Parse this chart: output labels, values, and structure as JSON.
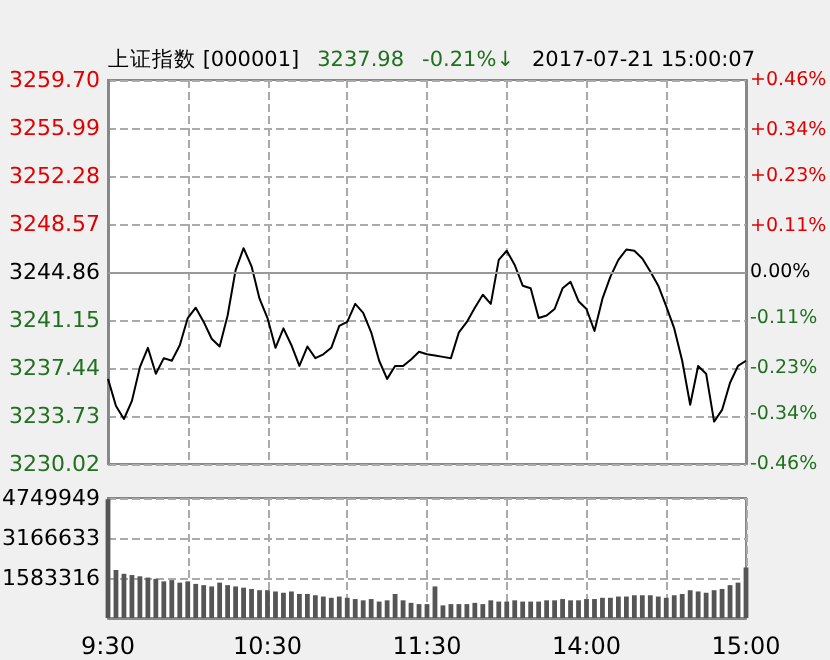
{
  "chart_data": [
    {
      "type": "line",
      "title": "上证指数 [000001]",
      "annotations": [
        "3237.98",
        "-0.21%↓",
        "2017-07-21 15:00:07"
      ],
      "categories": [
        null,
        null,
        null,
        null,
        null,
        null,
        null,
        null,
        null,
        null,
        null,
        null,
        null,
        null,
        null,
        null,
        null,
        null,
        null,
        null,
        null,
        null,
        null,
        null,
        null,
        null,
        null,
        null,
        null,
        null,
        null,
        null,
        null,
        null,
        null,
        null,
        null,
        null,
        null,
        null,
        null,
        null,
        null,
        null,
        null,
        null,
        null,
        null,
        null,
        null,
        null,
        null,
        null,
        null,
        null,
        null,
        null,
        null,
        null,
        null,
        null,
        null,
        null,
        null,
        null,
        null,
        null,
        null,
        null,
        null,
        null,
        null,
        null,
        null,
        null,
        null,
        null,
        null,
        null,
        null,
        null
      ],
      "series": [
        {
          "color": "#000000",
          "values": [
            3236.6,
            3234.5,
            3233.5,
            3234.9,
            3237.5,
            3239.0,
            3237.0,
            3238.2,
            3238.0,
            3239.2,
            3241.3,
            3242.1,
            3241.0,
            3239.7,
            3239.1,
            3241.5,
            3245.0,
            3246.7,
            3245.3,
            3242.8,
            3241.3,
            3239.0,
            3240.5,
            3239.2,
            3237.6,
            3239.1,
            3238.2,
            3238.5,
            3239.0,
            3240.7,
            3241.0,
            3242.4,
            3241.7,
            3240.2,
            3238.0,
            3236.6,
            3237.6,
            3237.6,
            3238.1,
            3238.7,
            3238.5,
            3238.4,
            3238.3,
            3238.2,
            3240.2,
            3241.0,
            3242.1,
            3243.1,
            3242.4,
            3245.8,
            3246.5,
            3245.4,
            3243.8,
            3243.6,
            3241.3,
            3241.5,
            3242.0,
            3243.6,
            3244.1,
            3242.6,
            3242.0,
            3240.3,
            3242.8,
            3244.5,
            3245.8,
            3246.6,
            3246.5,
            3245.9,
            3244.9,
            3243.8,
            3242.2,
            3240.5,
            3238.0,
            3234.6,
            3237.6,
            3237.0,
            3233.3,
            3234.2,
            3236.3,
            3237.6,
            3238.0
          ]
        }
      ],
      "ylim": [
        3230.02,
        3259.7
      ],
      "yticks": [
        {
          "value": 3230.02,
          "label": "3230.02"
        },
        {
          "value": 3233.73,
          "label": "3233.73"
        },
        {
          "value": 3237.44,
          "label": "3237.44"
        },
        {
          "value": 3241.15,
          "label": "3241.15"
        },
        {
          "value": 3244.86,
          "label": "3244.86"
        },
        {
          "value": 3248.57,
          "label": "3248.57"
        },
        {
          "value": 3252.28,
          "label": "3252.28"
        },
        {
          "value": 3255.99,
          "label": "3255.99"
        },
        {
          "value": 3259.7,
          "label": "3259.70"
        }
      ],
      "y2lim": [
        -0.46,
        0.46
      ],
      "y2ticks": [
        {
          "value": -0.46,
          "label": "-0.46%"
        },
        {
          "value": -0.34,
          "label": "-0.34%"
        },
        {
          "value": -0.23,
          "label": "-0.23%"
        },
        {
          "value": -0.11,
          "label": "-0.11%"
        },
        {
          "value": 0,
          "label": "0.00%"
        },
        {
          "value": 0.11,
          "label": "+0.11%"
        },
        {
          "value": 0.23,
          "label": "+0.23%"
        },
        {
          "value": 0.34,
          "label": "+0.34%"
        },
        {
          "value": 0.46,
          "label": "+0.46%"
        }
      ],
      "ref_lines": [
        {
          "axis": "y",
          "value": 3244.86
        }
      ],
      "grid": true,
      "line_style": "solid",
      "tick_labels": "y"
    },
    {
      "type": "bar",
      "categories": [
        "9:30",
        null,
        null,
        null,
        null,
        null,
        null,
        null,
        null,
        null,
        null,
        null,
        null,
        null,
        null,
        null,
        null,
        null,
        null,
        null,
        "10:30",
        null,
        null,
        null,
        null,
        null,
        null,
        null,
        null,
        null,
        null,
        null,
        null,
        null,
        null,
        null,
        null,
        null,
        null,
        null,
        "11:30",
        null,
        null,
        null,
        null,
        null,
        null,
        null,
        null,
        null,
        null,
        null,
        null,
        null,
        null,
        null,
        null,
        null,
        null,
        null,
        "14:00",
        null,
        null,
        null,
        null,
        null,
        null,
        null,
        null,
        null,
        null,
        null,
        null,
        null,
        null,
        null,
        null,
        null,
        null,
        null,
        "15:00"
      ],
      "series": [
        {
          "color": "#555555",
          "values": [
            4700000,
            1900000,
            1750000,
            1700000,
            1650000,
            1600000,
            1550000,
            1450000,
            1500000,
            1400000,
            1450000,
            1350000,
            1300000,
            1250000,
            1400000,
            1300000,
            1250000,
            1200000,
            1150000,
            1100000,
            1100000,
            1050000,
            1000000,
            1050000,
            950000,
            950000,
            900000,
            850000,
            800000,
            850000,
            800000,
            750000,
            700000,
            750000,
            650000,
            700000,
            950000,
            700000,
            600000,
            550000,
            550000,
            1250000,
            500000,
            550000,
            550000,
            550000,
            600000,
            550000,
            700000,
            650000,
            650000,
            700000,
            650000,
            650000,
            650000,
            700000,
            700000,
            750000,
            700000,
            700000,
            750000,
            750000,
            800000,
            800000,
            850000,
            850000,
            900000,
            900000,
            900000,
            850000,
            800000,
            900000,
            950000,
            1100000,
            1050000,
            1000000,
            1100000,
            1150000,
            1300000,
            1400000,
            2000000
          ]
        }
      ],
      "ylim": [
        0,
        4749949
      ],
      "yticks": [
        {
          "value": 0,
          "label": null
        },
        1583316,
        3166633,
        4749949
      ],
      "grid": true
    }
  ]
}
